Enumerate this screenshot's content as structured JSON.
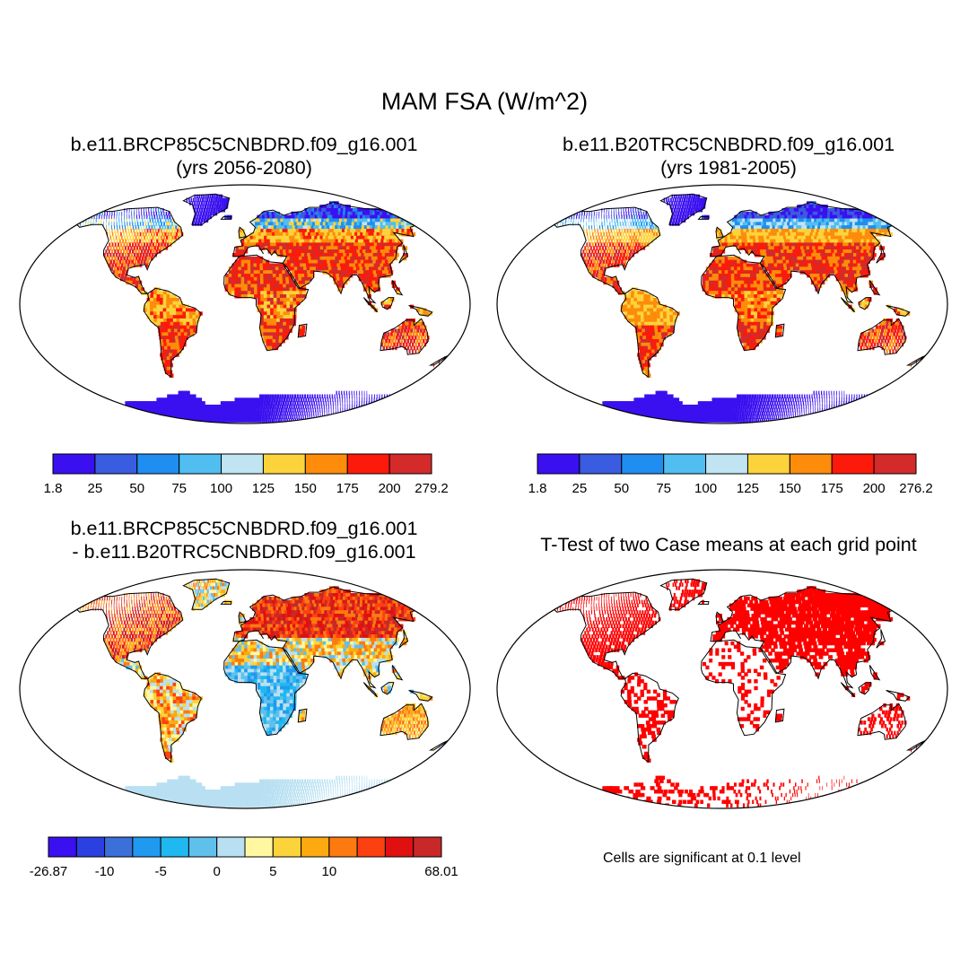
{
  "figure": {
    "title": "MAM FSA (W/m^2)"
  },
  "panels": [
    {
      "id": "tl",
      "title_line1": "b.e11.BRCP85C5CNBDRD.f09_g16.001",
      "title_line2": "(yrs 2056-2080)",
      "colorbar": {
        "labels": [
          "1.8",
          "25",
          "50",
          "75",
          "100",
          "125",
          "150",
          "175",
          "200",
          "279.2"
        ],
        "colors": [
          "#3a10f0",
          "#3a5ce0",
          "#1f8ef0",
          "#50bef0",
          "#c0e4f2",
          "#fcd33a",
          "#fd8c0a",
          "#fd1a0a",
          "#d42a2a"
        ]
      }
    },
    {
      "id": "tr",
      "title_line1": "b.e11.B20TRC5CNBDRD.f09_g16.001",
      "title_line2": "(yrs 1981-2005)",
      "colorbar": {
        "labels": [
          "1.8",
          "25",
          "50",
          "75",
          "100",
          "125",
          "150",
          "175",
          "200",
          "276.2"
        ],
        "colors": [
          "#3a10f0",
          "#3a5ce0",
          "#1f8ef0",
          "#50bef0",
          "#c0e4f2",
          "#fcd33a",
          "#fd8c0a",
          "#fd1a0a",
          "#d42a2a"
        ]
      }
    },
    {
      "id": "bl",
      "title_line1": "b.e11.BRCP85C5CNBDRD.f09_g16.001",
      "title_line2": "- b.e11.B20TRC5CNBDRD.f09_g16.001",
      "colorbar": {
        "labels": [
          "-26.87",
          "-10",
          "-5",
          "0",
          "5",
          "10",
          "68.01"
        ],
        "colors": [
          "#3a10f0",
          "#2a40e0",
          "#3a70d8",
          "#1f9af0",
          "#20b8f0",
          "#60c0ec",
          "#b8e0f2",
          "#fff8a0",
          "#fcd33a",
          "#fcaa10",
          "#fd7a10",
          "#fd4010",
          "#e01010",
          "#c82828"
        ]
      }
    },
    {
      "id": "br",
      "title_line1": "T-Test of two Case means at each grid point",
      "note": "Cells are significant at 0.1 level"
    }
  ],
  "colors": {
    "significant": "#ff0000",
    "land_outline": "#000000"
  }
}
